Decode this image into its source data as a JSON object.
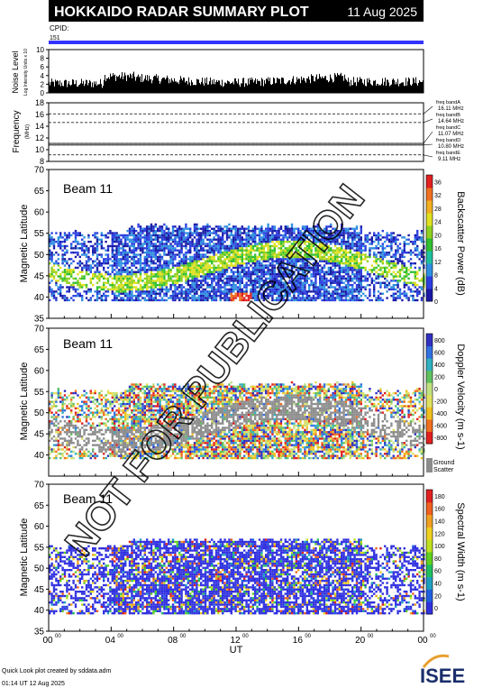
{
  "header": {
    "title": "HOKKAIDO RADAR SUMMARY PLOT",
    "date": "11 Aug 2025",
    "cpid_label": "CPID:",
    "cpid_value": "151"
  },
  "colors": {
    "title_bg": "#000000",
    "cpid_bar": "#3333ff",
    "ground_scatter": "#8c8c8c",
    "watermark": "#000000"
  },
  "noise_panel": {
    "ylabel": "Noise Level",
    "ylabel_units": "Log Intensity Units x 10",
    "ylim": [
      0,
      10
    ],
    "ticks": [
      0,
      2,
      4,
      6,
      8,
      10
    ]
  },
  "freq_panel": {
    "ylabel": "Frequency",
    "ylabel_units": "(MHz)",
    "ylim": [
      8,
      18
    ],
    "ticks": [
      8,
      10,
      12,
      14,
      16,
      18
    ],
    "bands": [
      {
        "name": "freq bandA",
        "freq": "16.11 MHz",
        "value": 16.11
      },
      {
        "name": "freq bandB",
        "freq": "14.64 MHz",
        "value": 14.64
      },
      {
        "name": "freq bandC",
        "freq": "11.07 MHz",
        "value": 11.07
      },
      {
        "name": "freq bandD",
        "freq": "10.80 MHz",
        "value": 10.8
      },
      {
        "name": "freq bandE",
        "freq": "9.11 MHz",
        "value": 9.11
      }
    ]
  },
  "chart_data": [
    {
      "type": "heatmap",
      "panel": "backscatter-power",
      "beam_label": "Beam 11",
      "ylabel": "Magnetic Latitude",
      "ylim": [
        35,
        70
      ],
      "yticks": [
        35,
        40,
        45,
        50,
        55,
        60,
        65,
        70
      ],
      "colorbar_label": "Backscatter Power (dB)",
      "colorbar_ticks": [
        "0",
        "4",
        "8",
        "12",
        "16",
        "20",
        "24",
        "28",
        "32",
        "36"
      ],
      "colorbar_range": [
        0,
        36
      ]
    },
    {
      "type": "heatmap",
      "panel": "doppler-velocity",
      "beam_label": "Beam 11",
      "ylabel": "Magnetic Latitude",
      "ylim": [
        35,
        70
      ],
      "yticks": [
        40,
        45,
        50,
        55,
        60,
        65,
        70
      ],
      "colorbar_label": "Doppler Velocity (m s-1)",
      "colorbar_ticks": [
        "-800",
        "-600",
        "-400",
        "-200",
        "0",
        "200",
        "400",
        "600",
        "800"
      ],
      "colorbar_range": [
        -900,
        900
      ],
      "ground_label_1": "Ground",
      "ground_label_2": "Scatter"
    },
    {
      "type": "heatmap",
      "panel": "spectral-width",
      "beam_label": "Beam 11",
      "ylabel": "Magnetic Latitude",
      "ylim": [
        35,
        70
      ],
      "yticks": [
        35,
        40,
        45,
        50,
        55,
        60,
        65,
        70
      ],
      "colorbar_label": "Spectral Width (m s-1)",
      "colorbar_ticks": [
        "0",
        "20",
        "40",
        "60",
        "80",
        "100",
        "120",
        "140",
        "160",
        "180"
      ],
      "colorbar_range": [
        0,
        190
      ]
    }
  ],
  "x_axis": {
    "label": "UT",
    "xlim": [
      0,
      24
    ],
    "ticks": [
      {
        "h": 0,
        "label": "00",
        "sup": "00"
      },
      {
        "h": 4,
        "label": "04",
        "sup": "00"
      },
      {
        "h": 8,
        "label": "08",
        "sup": "00"
      },
      {
        "h": 12,
        "label": "12",
        "sup": "00"
      },
      {
        "h": 16,
        "label": "16",
        "sup": "00"
      },
      {
        "h": 20,
        "label": "20",
        "sup": "00"
      },
      {
        "h": 24,
        "label": "00",
        "sup": "00"
      }
    ]
  },
  "footer": {
    "credit": "Quick Look plot created by sddata.adm",
    "timestamp": "01:14 UT 12 Aug 2025",
    "logo_text": "ISEE"
  },
  "watermark": "NOT FOR PUBLICATION"
}
